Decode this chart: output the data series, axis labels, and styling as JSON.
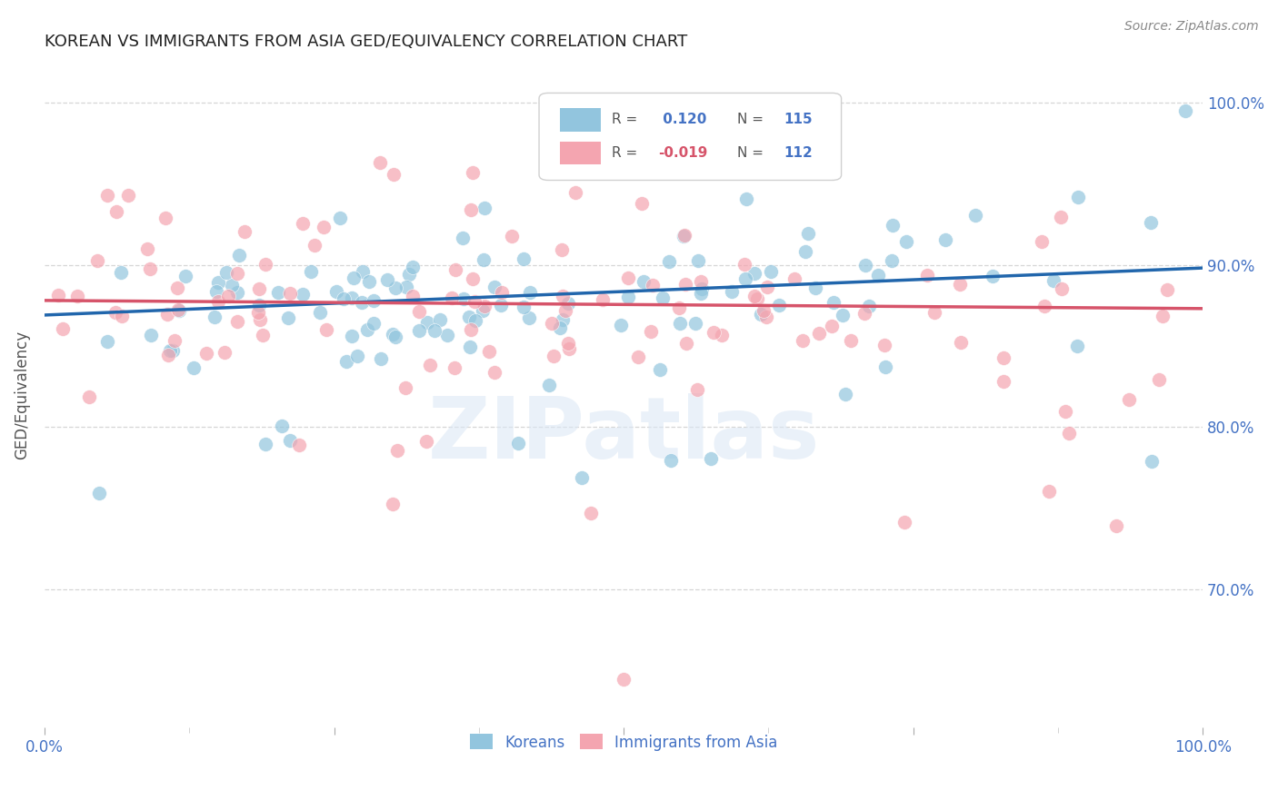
{
  "title": "KOREAN VS IMMIGRANTS FROM ASIA GED/EQUIVALENCY CORRELATION CHART",
  "source": "Source: ZipAtlas.com",
  "ylabel": "GED/Equivalency",
  "xlim": [
    0.0,
    1.0
  ],
  "ylim": [
    0.615,
    1.025
  ],
  "yticks": [
    0.7,
    0.8,
    0.9,
    1.0
  ],
  "ytick_labels": [
    "70.0%",
    "80.0%",
    "90.0%",
    "100.0%"
  ],
  "r_korean": 0.12,
  "n_korean": 115,
  "r_immigrants": -0.019,
  "n_immigrants": 112,
  "blue_color": "#92c5de",
  "pink_color": "#f4a5b0",
  "trend_blue": "#2166ac",
  "trend_pink": "#d6546a",
  "background": "#ffffff",
  "grid_color": "#cccccc",
  "legend_label_blue": "Koreans",
  "legend_label_pink": "Immigrants from Asia",
  "title_color": "#222222",
  "source_color": "#888888",
  "axis_label_color": "#4472c4",
  "blue_line_start_y": 0.869,
  "blue_line_end_y": 0.898,
  "pink_line_start_y": 0.878,
  "pink_line_end_y": 0.873,
  "watermark": "ZIPatlas"
}
